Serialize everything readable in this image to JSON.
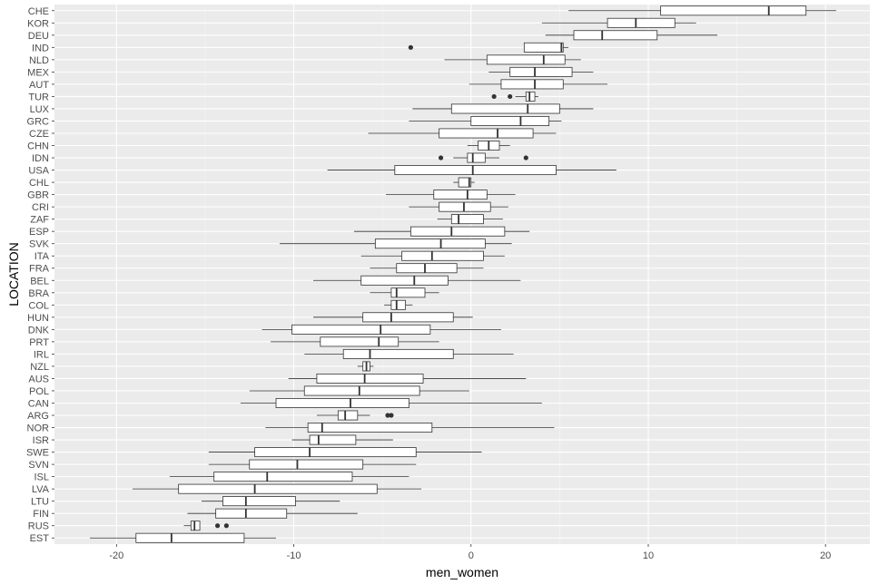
{
  "chart_data": {
    "type": "boxplot",
    "xlabel": "men_women",
    "ylabel": "LOCATION",
    "xlim": [
      -23.5,
      22.5
    ],
    "x_ticks": [
      -20,
      -10,
      0,
      10,
      20
    ],
    "x_tick_labels": [
      "-20",
      "-10",
      "0",
      "10",
      "20"
    ],
    "grid": true,
    "orientation": "horizontal",
    "categories": [
      "CHE",
      "KOR",
      "DEU",
      "IND",
      "NLD",
      "MEX",
      "AUT",
      "TUR",
      "LUX",
      "GRC",
      "CZE",
      "CHN",
      "IDN",
      "USA",
      "CHL",
      "GBR",
      "CRI",
      "ZAF",
      "ESP",
      "SVK",
      "ITA",
      "FRA",
      "BEL",
      "BRA",
      "COL",
      "HUN",
      "DNK",
      "PRT",
      "IRL",
      "NZL",
      "AUS",
      "POL",
      "CAN",
      "ARG",
      "NOR",
      "ISR",
      "SWE",
      "SVN",
      "ISL",
      "LVA",
      "LTU",
      "FIN",
      "RUS",
      "EST"
    ],
    "boxes": [
      {
        "location": "CHE",
        "min": 5.5,
        "q1": 10.7,
        "median": 16.8,
        "q3": 18.9,
        "max": 20.6,
        "outliers": []
      },
      {
        "location": "KOR",
        "min": 4.0,
        "q1": 7.7,
        "median": 9.3,
        "q3": 11.5,
        "max": 12.7,
        "outliers": []
      },
      {
        "location": "DEU",
        "min": 4.2,
        "q1": 5.8,
        "median": 7.4,
        "q3": 10.5,
        "max": 13.9,
        "outliers": []
      },
      {
        "location": "IND",
        "min": 3.0,
        "q1": 3.0,
        "median": 5.1,
        "q3": 5.2,
        "max": 5.5,
        "outliers": [
          -3.4
        ]
      },
      {
        "location": "NLD",
        "min": -1.5,
        "q1": 0.9,
        "median": 4.1,
        "q3": 5.3,
        "max": 6.2,
        "outliers": []
      },
      {
        "location": "MEX",
        "min": 1.0,
        "q1": 2.2,
        "median": 3.6,
        "q3": 5.7,
        "max": 6.9,
        "outliers": []
      },
      {
        "location": "AUT",
        "min": -0.1,
        "q1": 1.7,
        "median": 3.6,
        "q3": 5.2,
        "max": 7.7,
        "outliers": []
      },
      {
        "location": "TUR",
        "min": 2.5,
        "q1": 3.1,
        "median": 3.3,
        "q3": 3.6,
        "max": 3.8,
        "outliers": [
          1.3,
          2.2
        ]
      },
      {
        "location": "LUX",
        "min": -3.3,
        "q1": -1.1,
        "median": 3.2,
        "q3": 5.0,
        "max": 6.9,
        "outliers": []
      },
      {
        "location": "GRC",
        "min": -3.5,
        "q1": 0.0,
        "median": 2.8,
        "q3": 4.4,
        "max": 5.1,
        "outliers": []
      },
      {
        "location": "CZE",
        "min": -5.8,
        "q1": -1.8,
        "median": 1.5,
        "q3": 3.5,
        "max": 4.8,
        "outliers": []
      },
      {
        "location": "CHN",
        "min": -0.2,
        "q1": 0.4,
        "median": 1.0,
        "q3": 1.6,
        "max": 2.2,
        "outliers": []
      },
      {
        "location": "IDN",
        "min": -1.0,
        "q1": -0.2,
        "median": 0.1,
        "q3": 0.8,
        "max": 1.6,
        "outliers": [
          -1.7,
          3.1
        ]
      },
      {
        "location": "USA",
        "min": -8.1,
        "q1": -4.3,
        "median": 0.1,
        "q3": 4.8,
        "max": 8.2,
        "outliers": []
      },
      {
        "location": "CHL",
        "min": -1.0,
        "q1": -0.7,
        "median": -0.1,
        "q3": 0.0,
        "max": 0.2,
        "outliers": []
      },
      {
        "location": "GBR",
        "min": -4.8,
        "q1": -2.1,
        "median": -0.2,
        "q3": 0.9,
        "max": 2.5,
        "outliers": []
      },
      {
        "location": "CRI",
        "min": -3.5,
        "q1": -1.8,
        "median": -0.4,
        "q3": 1.1,
        "max": 2.1,
        "outliers": []
      },
      {
        "location": "ZAF",
        "min": -1.9,
        "q1": -1.1,
        "median": -0.7,
        "q3": 0.7,
        "max": 1.8,
        "outliers": []
      },
      {
        "location": "ESP",
        "min": -6.6,
        "q1": -3.4,
        "median": -1.1,
        "q3": 1.9,
        "max": 3.3,
        "outliers": []
      },
      {
        "location": "SVK",
        "min": -10.8,
        "q1": -5.4,
        "median": -1.7,
        "q3": 0.8,
        "max": 2.3,
        "outliers": []
      },
      {
        "location": "ITA",
        "min": -6.2,
        "q1": -3.9,
        "median": -2.2,
        "q3": 0.7,
        "max": 1.9,
        "outliers": []
      },
      {
        "location": "FRA",
        "min": -5.7,
        "q1": -4.2,
        "median": -2.6,
        "q3": -0.8,
        "max": 0.7,
        "outliers": []
      },
      {
        "location": "BEL",
        "min": -8.9,
        "q1": -6.2,
        "median": -3.2,
        "q3": -1.3,
        "max": 2.8,
        "outliers": []
      },
      {
        "location": "BRA",
        "min": -5.7,
        "q1": -4.5,
        "median": -4.2,
        "q3": -2.6,
        "max": -1.8,
        "outliers": []
      },
      {
        "location": "COL",
        "min": -4.9,
        "q1": -4.5,
        "median": -4.2,
        "q3": -3.7,
        "max": -3.3,
        "outliers": []
      },
      {
        "location": "HUN",
        "min": -8.9,
        "q1": -6.1,
        "median": -4.5,
        "q3": -1.0,
        "max": 0.1,
        "outliers": []
      },
      {
        "location": "DNK",
        "min": -11.8,
        "q1": -10.1,
        "median": -5.1,
        "q3": -2.3,
        "max": 1.7,
        "outliers": []
      },
      {
        "location": "PRT",
        "min": -11.3,
        "q1": -8.5,
        "median": -5.2,
        "q3": -4.1,
        "max": -1.8,
        "outliers": []
      },
      {
        "location": "IRL",
        "min": -9.4,
        "q1": -7.2,
        "median": -5.7,
        "q3": -1.0,
        "max": 2.4,
        "outliers": []
      },
      {
        "location": "NZL",
        "min": -6.4,
        "q1": -6.1,
        "median": -5.9,
        "q3": -5.7,
        "max": -5.5,
        "outliers": []
      },
      {
        "location": "AUS",
        "min": -10.3,
        "q1": -8.7,
        "median": -6.0,
        "q3": -2.7,
        "max": 3.1,
        "outliers": []
      },
      {
        "location": "POL",
        "min": -12.5,
        "q1": -9.4,
        "median": -6.3,
        "q3": -2.9,
        "max": -0.1,
        "outliers": []
      },
      {
        "location": "CAN",
        "min": -13.0,
        "q1": -11.0,
        "median": -6.8,
        "q3": -3.5,
        "max": 4.0,
        "outliers": []
      },
      {
        "location": "ARG",
        "min": -8.7,
        "q1": -7.5,
        "median": -7.1,
        "q3": -6.4,
        "max": -5.7,
        "outliers": [
          -4.7,
          -4.5
        ]
      },
      {
        "location": "NOR",
        "min": -11.6,
        "q1": -9.2,
        "median": -8.4,
        "q3": -2.2,
        "max": 4.7,
        "outliers": []
      },
      {
        "location": "ISR",
        "min": -10.1,
        "q1": -9.1,
        "median": -8.6,
        "q3": -6.5,
        "max": -4.4,
        "outliers": []
      },
      {
        "location": "SWE",
        "min": -14.8,
        "q1": -12.2,
        "median": -9.1,
        "q3": -3.1,
        "max": 0.6,
        "outliers": []
      },
      {
        "location": "SVN",
        "min": -14.8,
        "q1": -12.5,
        "median": -9.8,
        "q3": -6.1,
        "max": -3.1,
        "outliers": []
      },
      {
        "location": "ISL",
        "min": -17.0,
        "q1": -14.5,
        "median": -11.5,
        "q3": -6.7,
        "max": -3.5,
        "outliers": []
      },
      {
        "location": "LVA",
        "min": -19.1,
        "q1": -16.5,
        "median": -12.2,
        "q3": -5.3,
        "max": -2.8,
        "outliers": []
      },
      {
        "location": "LTU",
        "min": -15.2,
        "q1": -14.0,
        "median": -12.7,
        "q3": -9.9,
        "max": -7.4,
        "outliers": []
      },
      {
        "location": "FIN",
        "min": -16.0,
        "q1": -14.4,
        "median": -12.7,
        "q3": -10.4,
        "max": -6.4,
        "outliers": []
      },
      {
        "location": "RUS",
        "min": -16.2,
        "q1": -15.8,
        "median": -15.6,
        "q3": -15.3,
        "max": -15.3,
        "outliers": [
          -14.3,
          -13.8
        ]
      },
      {
        "location": "EST",
        "min": -21.5,
        "q1": -18.9,
        "median": -16.9,
        "q3": -12.8,
        "max": -11.0,
        "outliers": []
      }
    ]
  },
  "colors": {
    "panel_background": "#ebebeb",
    "grid_major": "#ffffff",
    "grid_minor": "#f5f5f5",
    "box_fill": "#ffffff",
    "box_line": "#333333",
    "outlier": "#333333",
    "tick_text": "#4d4d4d",
    "title_text": "#000000"
  }
}
